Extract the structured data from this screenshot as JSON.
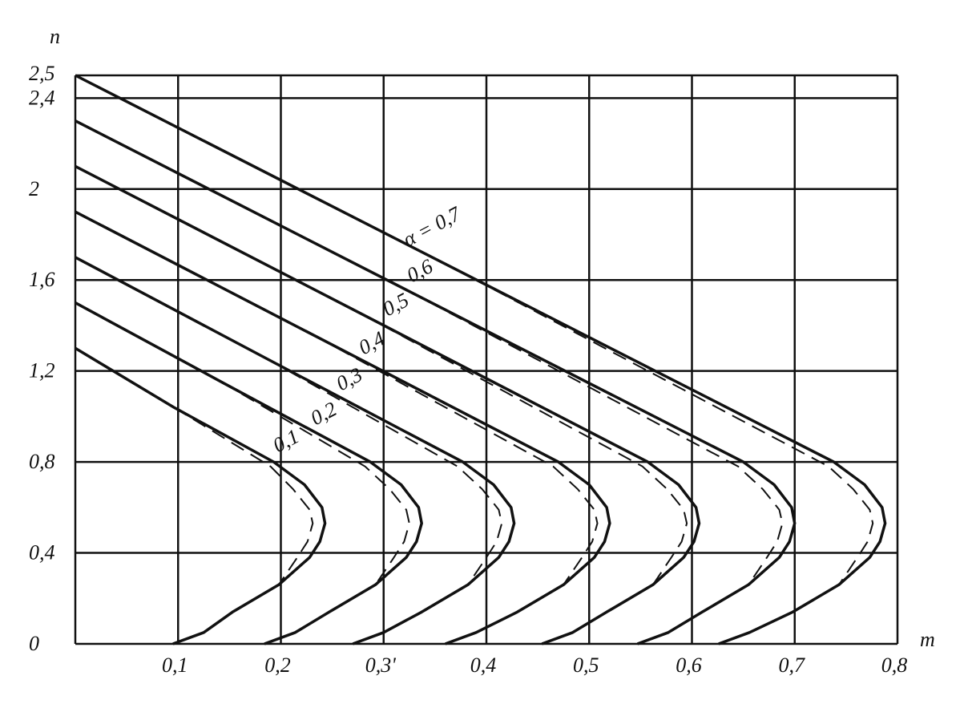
{
  "chart_data": {
    "type": "line",
    "x_label": "m",
    "y_label": "n",
    "xlim": [
      0,
      0.8
    ],
    "ylim": [
      0,
      2.5
    ],
    "xticks": [
      {
        "value": 0.1,
        "label": "0,1"
      },
      {
        "value": 0.2,
        "label": "0,2"
      },
      {
        "value": 0.3,
        "label": "0,3'"
      },
      {
        "value": 0.4,
        "label": "0,4"
      },
      {
        "value": 0.5,
        "label": "0,5"
      },
      {
        "value": 0.6,
        "label": "0,6"
      },
      {
        "value": 0.7,
        "label": "0,7"
      },
      {
        "value": 0.8,
        "label": "0,8"
      }
    ],
    "yticks": [
      0,
      {
        "value": 0.4,
        "label": "0,4"
      },
      {
        "value": 0.8,
        "label": "0,8"
      },
      {
        "value": 1.2,
        "label": "1,2"
      },
      {
        "value": 1.6,
        "label": "1,6"
      },
      2,
      {
        "value": 2.4,
        "label": "2,4"
      },
      {
        "value": 2.5,
        "label": "2,5"
      }
    ],
    "grid": true,
    "series": [
      {
        "name": "0,1",
        "color": "#111",
        "style": "solid",
        "x": [
          0,
          0.096,
          0.193,
          0.223,
          0.24,
          0.243,
          0.238,
          0.228,
          0.198,
          0.153,
          0.125,
          0.095
        ],
        "values": [
          1.3,
          1.04,
          0.8,
          0.7,
          0.6,
          0.53,
          0.45,
          0.38,
          0.26,
          0.14,
          0.05,
          0
        ]
      },
      {
        "name": "0,2",
        "color": "#111",
        "style": "solid",
        "x": [
          0,
          0.143,
          0.287,
          0.317,
          0.334,
          0.337,
          0.332,
          0.322,
          0.292,
          0.247,
          0.214,
          0.184
        ],
        "values": [
          1.5,
          1.15,
          0.8,
          0.7,
          0.6,
          0.53,
          0.45,
          0.38,
          0.26,
          0.14,
          0.05,
          0
        ]
      },
      {
        "name": "0,3",
        "color": "#111",
        "style": "solid",
        "x": [
          0,
          0.188,
          0.377,
          0.407,
          0.424,
          0.427,
          0.422,
          0.412,
          0.382,
          0.337,
          0.3,
          0.27
        ],
        "values": [
          1.7,
          1.25,
          0.8,
          0.7,
          0.6,
          0.53,
          0.45,
          0.38,
          0.26,
          0.14,
          0.05,
          0
        ]
      },
      {
        "name": "0,4",
        "color": "#111",
        "style": "solid",
        "x": [
          0,
          0.235,
          0.47,
          0.5,
          0.517,
          0.52,
          0.515,
          0.505,
          0.475,
          0.43,
          0.39,
          0.36
        ],
        "values": [
          1.9,
          1.35,
          0.8,
          0.7,
          0.6,
          0.53,
          0.45,
          0.38,
          0.26,
          0.14,
          0.05,
          0
        ]
      },
      {
        "name": "0,5",
        "color": "#111",
        "style": "solid",
        "x": [
          0,
          0.279,
          0.557,
          0.587,
          0.604,
          0.607,
          0.602,
          0.592,
          0.562,
          0.517,
          0.484,
          0.454
        ],
        "values": [
          2.1,
          1.45,
          0.8,
          0.7,
          0.6,
          0.53,
          0.45,
          0.38,
          0.26,
          0.14,
          0.05,
          0
        ]
      },
      {
        "name": "0,6",
        "color": "#111",
        "style": "solid",
        "x": [
          0,
          0.325,
          0.65,
          0.68,
          0.697,
          0.7,
          0.695,
          0.685,
          0.655,
          0.61,
          0.577,
          0.547
        ],
        "values": [
          2.3,
          1.55,
          0.8,
          0.7,
          0.6,
          0.53,
          0.45,
          0.38,
          0.26,
          0.14,
          0.05,
          0
        ]
      },
      {
        "name": "α = 0,7",
        "color": "#111",
        "style": "solid",
        "x": [
          0,
          0.369,
          0.738,
          0.768,
          0.785,
          0.788,
          0.783,
          0.773,
          0.743,
          0.698,
          0.656,
          0.626
        ],
        "values": [
          2.5,
          1.65,
          0.8,
          0.7,
          0.6,
          0.53,
          0.45,
          0.38,
          0.26,
          0.14,
          0.05,
          0
        ]
      },
      {
        "color": "#111",
        "style": "dashed",
        "x": [
          0.096,
          0.19,
          0.212,
          0.228,
          0.231,
          0.226,
          0.216,
          0.198
        ],
        "values": [
          1.04,
          0.78,
          0.68,
          0.59,
          0.53,
          0.45,
          0.38,
          0.26
        ]
      },
      {
        "color": "#111",
        "style": "dashed",
        "x": [
          0.143,
          0.282,
          0.306,
          0.322,
          0.325,
          0.32,
          0.31,
          0.292
        ],
        "values": [
          1.15,
          0.78,
          0.68,
          0.59,
          0.53,
          0.45,
          0.38,
          0.26
        ]
      },
      {
        "color": "#111",
        "style": "dashed",
        "x": [
          0.188,
          0.372,
          0.396,
          0.412,
          0.415,
          0.41,
          0.4,
          0.382
        ],
        "values": [
          1.25,
          0.78,
          0.68,
          0.59,
          0.53,
          0.45,
          0.38,
          0.26
        ]
      },
      {
        "color": "#111",
        "style": "dashed",
        "x": [
          0.235,
          0.465,
          0.489,
          0.505,
          0.508,
          0.503,
          0.493,
          0.475
        ],
        "values": [
          1.35,
          0.78,
          0.68,
          0.59,
          0.53,
          0.45,
          0.38,
          0.26
        ]
      },
      {
        "color": "#111",
        "style": "dashed",
        "x": [
          0.279,
          0.552,
          0.576,
          0.592,
          0.595,
          0.59,
          0.58,
          0.562
        ],
        "values": [
          1.45,
          0.78,
          0.68,
          0.59,
          0.53,
          0.45,
          0.38,
          0.26
        ]
      },
      {
        "color": "#111",
        "style": "dashed",
        "x": [
          0.325,
          0.645,
          0.669,
          0.685,
          0.688,
          0.683,
          0.673,
          0.655
        ],
        "values": [
          1.55,
          0.78,
          0.68,
          0.59,
          0.53,
          0.45,
          0.38,
          0.26
        ]
      },
      {
        "color": "#111",
        "style": "dashed",
        "x": [
          0.369,
          0.733,
          0.757,
          0.773,
          0.776,
          0.771,
          0.761,
          0.743
        ],
        "values": [
          1.65,
          0.78,
          0.68,
          0.59,
          0.53,
          0.45,
          0.38,
          0.26
        ]
      }
    ]
  }
}
